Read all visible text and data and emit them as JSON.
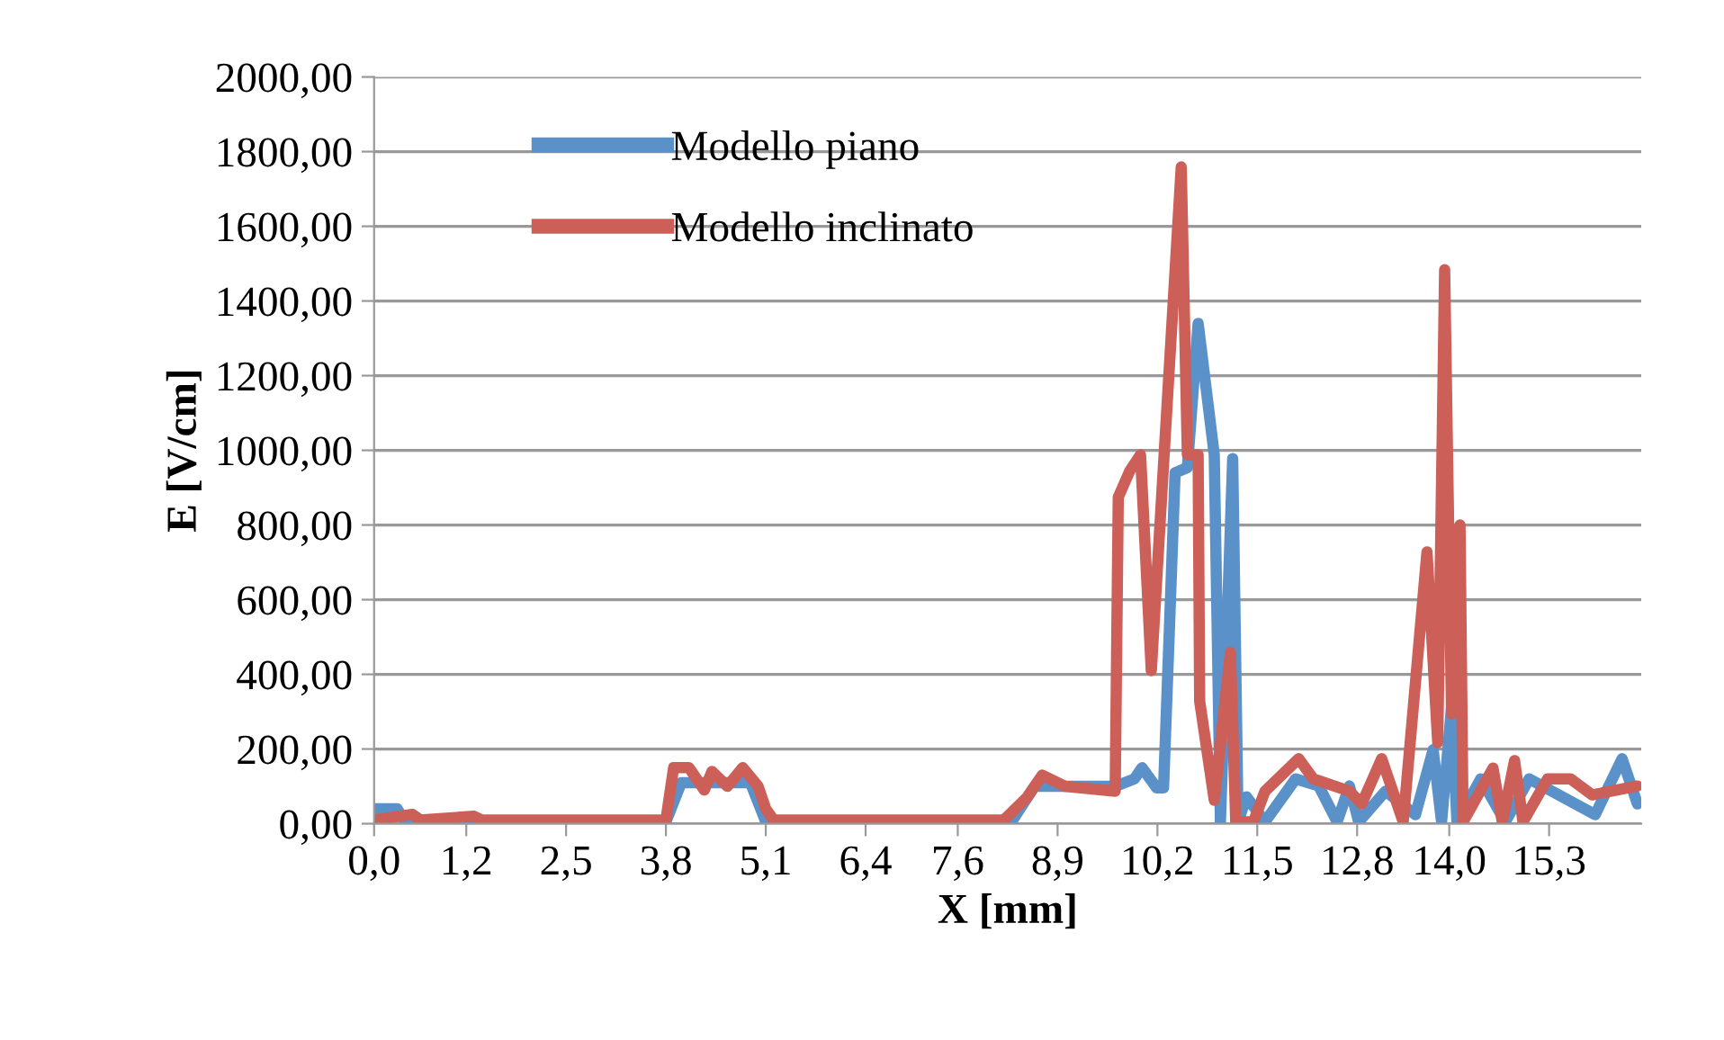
{
  "chart_data": {
    "type": "line",
    "xlabel": "X [mm]",
    "ylabel": "E [V/cm]",
    "grid": "y",
    "legend": "top left",
    "line_style": "solid",
    "marker": "none",
    "xlim": [
      0,
      16.5
    ],
    "ylim": [
      0,
      2000
    ],
    "xticks": [
      {
        "value": 0,
        "label": "0,0"
      },
      {
        "value": 1.2,
        "label": "1,2"
      },
      {
        "value": 2.5,
        "label": "2,5"
      },
      {
        "value": 3.8,
        "label": "3,8"
      },
      {
        "value": 5.1,
        "label": "5,1"
      },
      {
        "value": 6.4,
        "label": "6,4"
      },
      {
        "value": 7.6,
        "label": "7,6"
      },
      {
        "value": 8.9,
        "label": "8,9"
      },
      {
        "value": 10.2,
        "label": "10,2"
      },
      {
        "value": 11.5,
        "label": "11,5"
      },
      {
        "value": 12.8,
        "label": "12,8"
      },
      {
        "value": 14.0,
        "label": "14,0"
      },
      {
        "value": 15.3,
        "label": "15,3"
      }
    ],
    "yticks": [
      {
        "value": 0,
        "label": "0,00"
      },
      {
        "value": 200,
        "label": "200,00"
      },
      {
        "value": 400,
        "label": "400,00"
      },
      {
        "value": 600,
        "label": "600,00"
      },
      {
        "value": 800,
        "label": "800,00"
      },
      {
        "value": 1000,
        "label": "1000,00"
      },
      {
        "value": 1200,
        "label": "1200,00"
      },
      {
        "value": 1400,
        "label": "1400,00"
      },
      {
        "value": 1600,
        "label": "1600,00"
      },
      {
        "value": 1800,
        "label": "1800,00"
      },
      {
        "value": 2000,
        "label": "2000,00"
      }
    ],
    "series": [
      {
        "name": "Modello piano",
        "color": "#5b91c9",
        "x": [
          0,
          0.3,
          0.4,
          3.8,
          4.0,
          4.3,
          4.6,
          4.9,
          5.1,
          8.3,
          8.6,
          9.0,
          9.4,
          9.65,
          9.9,
          10.0,
          10.19,
          10.28,
          10.43,
          10.59,
          10.73,
          10.94,
          11.02,
          11.18,
          11.25,
          11.36,
          11.6,
          12.0,
          12.3,
          12.54,
          12.7,
          12.82,
          13.17,
          13.56,
          13.79,
          13.9,
          14.03,
          14.1,
          14.41,
          14.73,
          15.04,
          15.9,
          16.25,
          16.45
        ],
        "values": [
          40,
          40,
          5,
          5,
          110,
          110,
          110,
          110,
          5,
          5,
          100,
          100,
          100,
          100,
          120,
          150,
          96,
          96,
          940,
          954,
          1340,
          988,
          5,
          978,
          5,
          72,
          5,
          120,
          101,
          5,
          101,
          5,
          87,
          24,
          198,
          5,
          313,
          5,
          120,
          5,
          120,
          24,
          174,
          53
        ]
      },
      {
        "name": "Modello inclinato",
        "color": "#cc5f57",
        "x": [
          0,
          0.5,
          0.6,
          1.3,
          1.4,
          3.8,
          3.9,
          4.1,
          4.3,
          4.4,
          4.6,
          4.8,
          5.0,
          5.1,
          5.2,
          8.2,
          8.5,
          8.7,
          9.0,
          9.65,
          9.69,
          9.84,
          9.98,
          10.12,
          10.51,
          10.59,
          10.73,
          10.75,
          10.94,
          11.15,
          11.22,
          11.45,
          11.6,
          12.04,
          12.23,
          12.7,
          12.86,
          13.12,
          13.4,
          13.71,
          13.85,
          13.94,
          14.03,
          14.14,
          14.18,
          14.57,
          14.69,
          14.85,
          14.96,
          15.28,
          15.58,
          15.86,
          16.45
        ],
        "values": [
          10,
          25,
          10,
          20,
          10,
          10,
          150,
          150,
          90,
          140,
          100,
          150,
          100,
          40,
          10,
          10,
          70,
          130,
          100,
          87,
          874,
          945,
          988,
          410,
          1759,
          988,
          988,
          328,
          63,
          458,
          5,
          5,
          87,
          174,
          120,
          87,
          53,
          174,
          5,
          728,
          217,
          1484,
          294,
          800,
          5,
          149,
          5,
          169,
          5,
          120,
          120,
          77,
          101
        ]
      }
    ]
  }
}
